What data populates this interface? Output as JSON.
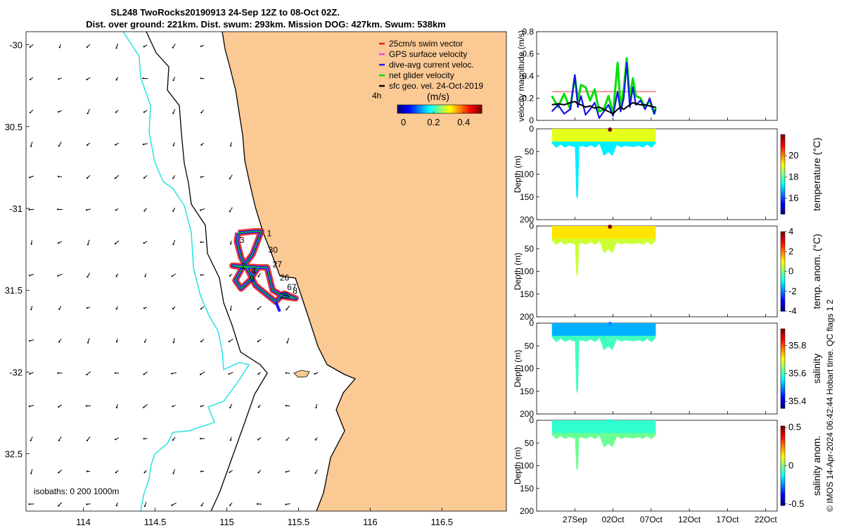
{
  "title_line1": "SL248 TwoRocks20190913 24-Sep 12Z to 08-Oct 02Z.",
  "title_line2": "Dist. over ground: 221km. Dist. swum: 293km. Mission DOG: 427km. Swum: 538km",
  "copyright": "© IMOS 14-Apr-2024 06:42:44 Hobart time. QC flags 1  2",
  "chart_data": [
    {
      "type": "map",
      "name": "glider-track-map",
      "xticks": [
        114,
        114.5,
        115,
        115.5,
        116,
        116.5
      ],
      "xtick_labels": [
        "114",
        "114.5",
        "115",
        "115.5",
        "116",
        "116.5"
      ],
      "yticks": [
        -30,
        -30.5,
        -31,
        -31.5,
        -32,
        -32.5
      ],
      "ytick_labels": [
        "-30",
        "30.5",
        "-31",
        "31.5",
        "-32",
        "32.5"
      ],
      "xlim": [
        113.6,
        116.95
      ],
      "ylim": [
        -32.85,
        -29.92
      ],
      "isobaths_label": "isobaths: 0   200  1000m",
      "scale_label": "4h",
      "colorbar": {
        "label": "(m/s)",
        "ticks": [
          0,
          0.2,
          0.4
        ],
        "tick_labels": [
          "0",
          "0.2",
          "0.4"
        ],
        "range": [
          -0.04,
          0.52
        ]
      },
      "legend": [
        {
          "label": "25cm/s swim vector",
          "color": "#e02020"
        },
        {
          "label": "GPS surface velocity",
          "color": "#ff40ff"
        },
        {
          "label": "dive-avg current veloc.",
          "color": "#1a1aff"
        },
        {
          "label": "net glider velocity",
          "color": "#00e000"
        },
        {
          "label": "sfc geo. vel. 24-Oct-2019",
          "color": "#000000"
        }
      ],
      "day_labels": [
        {
          "text": "1",
          "lon": 115.28,
          "lat": -31.17
        },
        {
          "text": "3",
          "lon": 115.09,
          "lat": -31.21
        },
        {
          "text": "30",
          "lon": 115.29,
          "lat": -31.27
        },
        {
          "text": "2",
          "lon": 115.1,
          "lat": -31.37
        },
        {
          "text": "27",
          "lon": 115.32,
          "lat": -31.36
        },
        {
          "text": "4",
          "lon": 115.17,
          "lat": -31.4
        },
        {
          "text": "9",
          "lon": 115.16,
          "lat": -31.45
        },
        {
          "text": "26",
          "lon": 115.37,
          "lat": -31.44
        },
        {
          "text": "67",
          "lon": 115.42,
          "lat": -31.5
        },
        {
          "text": "8",
          "lon": 115.46,
          "lat": -31.52
        },
        {
          "text": "25",
          "lon": 115.37,
          "lat": -31.55
        }
      ],
      "track_waypoints": [
        [
          115.08,
          -31.15
        ],
        [
          115.19,
          -31.14
        ],
        [
          115.24,
          -31.14
        ],
        [
          115.18,
          -31.28
        ],
        [
          115.11,
          -31.36
        ],
        [
          115.06,
          -31.44
        ],
        [
          115.1,
          -31.49
        ],
        [
          115.16,
          -31.44
        ],
        [
          115.22,
          -31.36
        ],
        [
          115.04,
          -31.35
        ],
        [
          115.12,
          -31.36
        ],
        [
          115.28,
          -31.36
        ],
        [
          115.32,
          -31.5
        ],
        [
          115.4,
          -31.54
        ],
        [
          115.48,
          -31.55
        ],
        [
          115.4,
          -31.52
        ],
        [
          115.34,
          -31.57
        ],
        [
          115.2,
          -31.47
        ],
        [
          115.15,
          -31.38
        ],
        [
          115.1,
          -31.3
        ],
        [
          115.07,
          -31.2
        ],
        [
          115.08,
          -31.15
        ]
      ]
    },
    {
      "type": "line",
      "name": "velocity-magnitude",
      "ylabel": "velocity magnitude (m/s)",
      "ylim": [
        0,
        0.8
      ],
      "yticks": [
        0,
        0.2,
        0.4,
        0.6,
        0.8
      ],
      "ytick_labels": [
        "0",
        "0.2",
        "0.4",
        "0.6",
        "0.8"
      ],
      "x_days": [
        0,
        0.8,
        1.6,
        2.4,
        3.0,
        3.4,
        3.8,
        4.4,
        5.0,
        5.6,
        6.2,
        6.8,
        7.4,
        8.0,
        8.6,
        9.0,
        9.4,
        9.8,
        10.2,
        10.6,
        11.0,
        11.6,
        12.2,
        12.8,
        13.4,
        13.6
      ],
      "series": [
        {
          "name": "GPS surface velocity",
          "color": "#f3a3a3",
          "width": 2.2,
          "values": [
            0.26,
            0.26,
            0.26,
            0.26,
            0.26,
            0.26,
            0.26,
            0.26,
            0.26,
            0.26,
            0.26,
            0.26,
            0.26,
            0.26,
            0.26,
            0.26,
            0.26,
            0.26,
            0.26,
            0.26,
            0.26,
            0.26,
            0.26,
            0.26,
            0.26,
            0.26
          ]
        },
        {
          "name": "net glider velocity",
          "color": "#00e000",
          "width": 3,
          "values": [
            0.22,
            0.12,
            0.24,
            0.1,
            0.4,
            0.18,
            0.32,
            0.3,
            0.18,
            0.28,
            0.08,
            0.1,
            0.22,
            0.06,
            0.52,
            0.12,
            0.28,
            0.56,
            0.2,
            0.38,
            0.22,
            0.2,
            0.12,
            0.18,
            0.06,
            0.12
          ]
        },
        {
          "name": "dive-avg current veloc.",
          "color": "#1515e6",
          "width": 2.2,
          "values": [
            0.08,
            0.14,
            0.06,
            0.1,
            0.41,
            0.12,
            0.22,
            0.05,
            0.1,
            0.16,
            0.02,
            0.08,
            0.14,
            0.04,
            0.26,
            0.08,
            0.2,
            0.52,
            0.12,
            0.3,
            0.14,
            0.18,
            0.1,
            0.2,
            0.06,
            0.1
          ]
        },
        {
          "name": "sfc geo. vel.",
          "color": "#000000",
          "width": 2,
          "values": [
            0.14,
            0.15,
            0.14,
            0.16,
            0.17,
            0.15,
            0.14,
            0.12,
            0.13,
            0.11,
            0.12,
            0.1,
            0.08,
            0.06,
            0.1,
            0.12,
            0.1,
            0.12,
            0.14,
            0.16,
            0.15,
            0.14,
            0.14,
            0.13,
            0.12,
            0.12
          ]
        }
      ]
    },
    {
      "type": "heatmap",
      "name": "temperature-section",
      "ylabel": "Depth (m)",
      "cbar_label": "temperature (°C)",
      "ylim": [
        0,
        200
      ],
      "yticks": [
        0,
        50,
        100,
        150,
        200
      ],
      "ytick_labels": [
        "0",
        "50",
        "100",
        "150",
        "200"
      ],
      "cbar_range": [
        14.5,
        22.0
      ],
      "cbar_ticks": [
        16,
        18,
        20
      ],
      "cbar_tick_labels": [
        "16",
        "18",
        "20"
      ],
      "surface_value": 19.0,
      "deep_value": 17.2,
      "hot_spot_value": 22.0,
      "trench_days": [
        3.0,
        3.6
      ],
      "trench_depth": 155
    },
    {
      "type": "heatmap",
      "name": "temperature-anomaly-section",
      "ylabel": "Depth (m)",
      "cbar_label": "temp. anom. (°C)",
      "ylim": [
        0,
        200
      ],
      "yticks": [
        0,
        50,
        100,
        150,
        200
      ],
      "ytick_labels": [
        "0",
        "50",
        "100",
        "150",
        "200"
      ],
      "cbar_range": [
        -4,
        4
      ],
      "cbar_ticks": [
        -4,
        -2,
        0,
        2,
        4
      ],
      "cbar_tick_labels": [
        "-4",
        "-2",
        "0",
        "2",
        "4"
      ],
      "surface_value": 1.2,
      "deep_value": 0.6,
      "hot_spot_value": 4.0,
      "trench_days": [
        3.0,
        3.6
      ],
      "trench_depth": 112
    },
    {
      "type": "heatmap",
      "name": "salinity-section",
      "ylabel": "Depth (m)",
      "cbar_label": "salinity",
      "ylim": [
        0,
        200
      ],
      "yticks": [
        0,
        50,
        100,
        150,
        200
      ],
      "ytick_labels": [
        "0",
        "50",
        "100",
        "150",
        "200"
      ],
      "cbar_range": [
        35.35,
        35.92
      ],
      "cbar_ticks": [
        35.4,
        35.6,
        35.8
      ],
      "cbar_tick_labels": [
        "35.4",
        "35.6",
        "35.8"
      ],
      "surface_value": 35.52,
      "deep_value": 35.6,
      "hot_spot_value": 35.5,
      "trench_days": [
        3.0,
        3.6
      ],
      "trench_depth": 155
    },
    {
      "type": "heatmap",
      "name": "salinity-anomaly-section",
      "ylabel": "Depth (m)",
      "cbar_label": "salinity anom.",
      "ylim": [
        0,
        200
      ],
      "yticks": [
        0,
        50,
        100,
        150,
        200
      ],
      "ytick_labels": [
        "0",
        "50",
        "100",
        "150",
        "200"
      ],
      "cbar_range": [
        -0.52,
        0.52
      ],
      "cbar_ticks": [
        -0.5,
        0,
        0.5
      ],
      "cbar_tick_labels": [
        "-0.5",
        "0",
        "0.5"
      ],
      "surface_value": -0.08,
      "deep_value": -0.02,
      "hot_spot_value": -0.1,
      "trench_days": [
        3.0,
        3.6
      ],
      "trench_depth": 112
    }
  ],
  "time_axis": {
    "xlim_days": [
      -2.0,
      29.5
    ],
    "ticks_days": [
      3,
      8,
      13,
      18,
      23,
      28
    ],
    "tick_labels": [
      "27Sep",
      "02Oct",
      "07Oct",
      "12Oct",
      "17Oct",
      "22Oct"
    ],
    "data_end_day": 13.6
  },
  "colors": {
    "land": "#fbc994",
    "ocean": "#ffffff",
    "isobath_200": "#000000",
    "isobath_1000": "#1de0e0"
  }
}
